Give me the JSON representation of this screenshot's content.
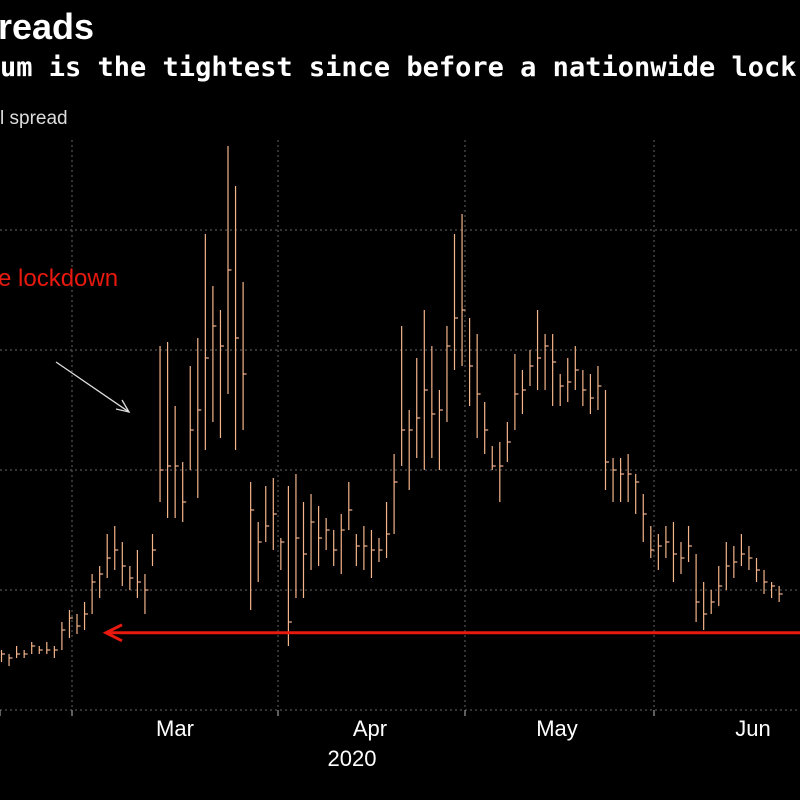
{
  "title": "reads",
  "subtitle": "um is the tightest since before a nationwide lock",
  "ylabel": "l spread",
  "annotation": "e lockdown",
  "colors": {
    "background": "#000000",
    "series": "#f5b48a",
    "annotation": "#e8190f",
    "grid": "#666666",
    "arrow_white": "#dddddd"
  },
  "chart_data": {
    "type": "ohlc",
    "title": "reads",
    "subtitle": "um is the tightest since before a nationwide lock",
    "ylabel": "l spread",
    "x_tick_labels": [
      "Mar",
      "Apr",
      "May",
      "Jun"
    ],
    "x_year_label": "2020",
    "grid": true,
    "annotation": "e lockdown",
    "reference_line_value": 19.3,
    "y_range": [
      0,
      100
    ],
    "series": [
      {
        "values": [
          [
            15,
            12,
            14
          ],
          [
            14,
            11,
            13
          ],
          [
            16,
            13,
            14
          ],
          [
            15,
            13,
            14
          ],
          [
            17,
            14,
            16
          ],
          [
            16,
            14,
            15
          ],
          [
            17,
            14,
            15
          ],
          [
            16,
            13,
            15
          ],
          [
            22,
            15,
            20
          ],
          [
            25,
            18,
            23
          ],
          [
            24,
            19,
            21
          ],
          [
            27,
            20,
            24
          ],
          [
            34,
            24,
            32
          ],
          [
            36,
            28,
            34
          ],
          [
            44,
            33,
            38
          ],
          [
            46,
            35,
            40
          ],
          [
            42,
            31,
            36
          ],
          [
            36,
            30,
            33
          ],
          [
            40,
            28,
            32
          ],
          [
            34,
            24,
            30
          ],
          [
            44,
            36,
            40
          ],
          [
            91,
            52,
            60
          ],
          [
            92,
            48,
            61
          ],
          [
            76,
            48,
            61
          ],
          [
            62,
            47,
            52
          ],
          [
            86,
            60,
            70
          ],
          [
            93,
            53,
            75
          ],
          [
            119,
            65,
            88
          ],
          [
            106,
            72,
            96
          ],
          [
            100,
            68,
            91
          ],
          [
            141,
            79,
            110
          ],
          [
            131,
            65,
            93
          ],
          [
            107,
            70,
            84
          ],
          [
            57,
            25,
            50
          ],
          [
            47,
            32,
            42
          ],
          [
            56,
            42,
            46
          ],
          [
            58,
            40,
            49
          ],
          [
            43,
            35,
            42
          ],
          [
            56,
            16,
            22
          ],
          [
            59,
            28,
            43
          ],
          [
            52,
            28,
            39
          ],
          [
            54,
            35,
            47
          ],
          [
            51,
            36,
            43
          ],
          [
            48,
            40,
            45
          ],
          [
            45,
            36,
            40
          ],
          [
            49,
            34,
            45
          ],
          [
            57,
            45,
            50
          ],
          [
            44,
            36,
            41
          ],
          [
            46,
            35,
            41
          ],
          [
            45,
            33,
            40
          ],
          [
            43,
            37,
            40
          ],
          [
            52,
            38,
            44
          ],
          [
            64,
            44,
            57
          ],
          [
            96,
            61,
            70
          ],
          [
            75,
            55,
            70
          ],
          [
            88,
            63,
            73
          ],
          [
            100,
            60,
            80
          ],
          [
            91,
            63,
            74
          ],
          [
            80,
            60,
            75
          ],
          [
            96,
            72,
            91
          ],
          [
            119,
            85,
            98
          ],
          [
            124,
            86,
            100
          ],
          [
            98,
            76,
            86
          ],
          [
            94,
            68,
            79
          ],
          [
            77,
            64,
            70
          ],
          [
            66,
            60,
            61
          ],
          [
            67,
            52,
            61
          ],
          [
            72,
            62,
            67
          ],
          [
            89,
            70,
            79
          ],
          [
            85,
            74,
            80
          ],
          [
            90,
            81,
            86
          ],
          [
            100,
            80,
            88
          ],
          [
            94,
            80,
            91
          ],
          [
            94,
            76,
            87
          ],
          [
            84,
            76,
            81
          ],
          [
            88,
            77,
            82
          ],
          [
            91,
            80,
            85
          ],
          [
            85,
            76,
            80
          ],
          [
            84,
            74,
            78
          ],
          [
            86,
            75,
            81
          ],
          [
            80,
            55,
            62
          ],
          [
            63,
            52,
            60
          ],
          [
            63,
            52,
            59
          ],
          [
            64,
            52,
            59
          ],
          [
            59,
            49,
            57
          ],
          [
            54,
            42,
            49
          ],
          [
            46,
            38,
            40
          ],
          [
            44,
            35,
            41
          ],
          [
            46,
            38,
            42
          ],
          [
            47,
            32,
            39
          ],
          [
            42,
            34,
            38
          ],
          [
            46,
            37,
            41
          ],
          [
            39,
            22,
            27
          ],
          [
            32,
            20,
            24
          ],
          [
            30,
            24,
            27
          ],
          [
            36,
            26,
            31
          ],
          [
            42,
            30,
            36
          ],
          [
            41,
            33,
            37
          ],
          [
            44,
            36,
            39
          ],
          [
            41,
            35,
            38
          ],
          [
            38,
            32,
            35
          ],
          [
            35,
            29,
            32
          ],
          [
            32,
            28,
            31
          ],
          [
            31,
            27,
            29
          ]
        ]
      }
    ]
  }
}
